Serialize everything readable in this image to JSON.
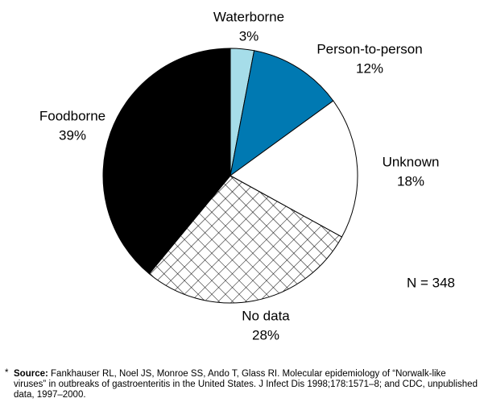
{
  "chart_data": {
    "type": "pie",
    "categories": [
      "Waterborne",
      "Person-to-person",
      "Unknown",
      "No data",
      "Foodborne"
    ],
    "values": [
      3,
      12,
      18,
      28,
      39
    ],
    "value_labels": [
      "3%",
      "12%",
      "18%",
      "28%",
      "39%"
    ],
    "colors": [
      "#a6dde9",
      "#0079b2",
      "#ffffff",
      "crosshatch",
      "#000000"
    ],
    "note": "N  = 348"
  },
  "footnote": {
    "marker": "*",
    "label": "Source:",
    "text": "Fankhauser RL, Noel JS, Monroe SS, Ando T, Glass RI. Molecular epidemiology of “Norwalk-like viruses” in outbreaks of gastroenteritis in the United States. J Infect Dis 1998;178:1571–8; and CDC, unpublished data, 1997–2000."
  }
}
